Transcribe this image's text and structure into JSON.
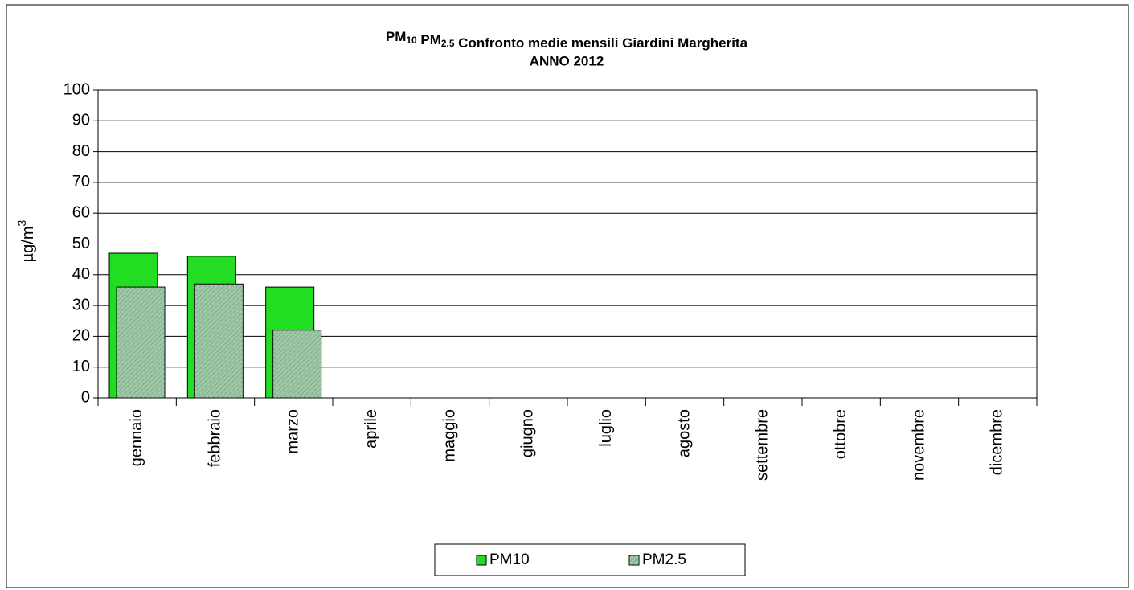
{
  "chart_data": {
    "type": "bar",
    "title": "PM10 PM2.5 Confronto medie mensili Giardini Margherita",
    "subtitle": "ANNO 2012",
    "y_label": "µg/m3",
    "categories": [
      "gennaio",
      "febbraio",
      "marzo",
      "aprile",
      "maggio",
      "giugno",
      "luglio",
      "agosto",
      "settembre",
      "ottobre",
      "novembre",
      "dicembre"
    ],
    "series": [
      {
        "name": "PM10",
        "color": "#22dd22",
        "values": [
          47,
          46,
          36,
          null,
          null,
          null,
          null,
          null,
          null,
          null,
          null,
          null
        ]
      },
      {
        "name": "PM2.5",
        "color": "#9ec9a8",
        "values": [
          36,
          37,
          22,
          null,
          null,
          null,
          null,
          null,
          null,
          null,
          null,
          null
        ]
      }
    ],
    "ylim": [
      0,
      100
    ],
    "yticks": [
      0,
      10,
      20,
      30,
      40,
      50,
      60,
      70,
      80,
      90,
      100
    ],
    "grid": true,
    "legend": "bottom"
  }
}
